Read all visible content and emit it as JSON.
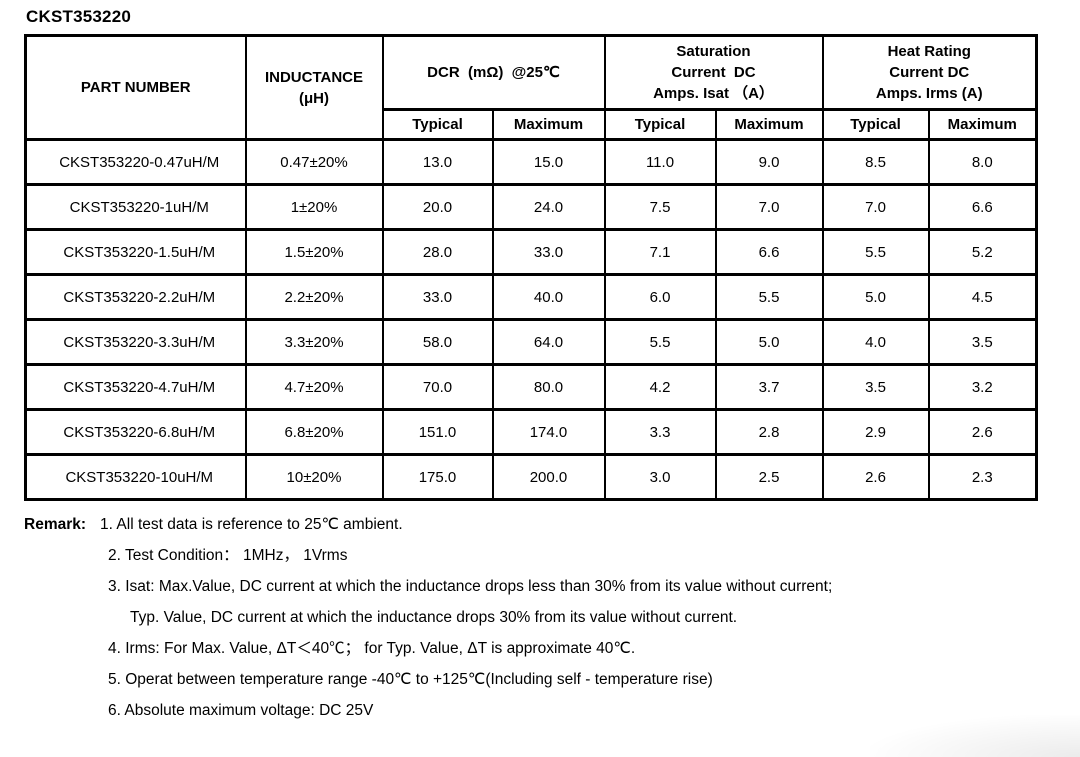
{
  "page": {
    "title": "CKST353220"
  },
  "colors": {
    "border": "#000000",
    "text": "#000000",
    "background": "#ffffff"
  },
  "table": {
    "headers": {
      "part_number": "PART NUMBER",
      "inductance": "INDUCTANCE\n(μH)",
      "dcr": "DCR  (mΩ)  @25℃",
      "saturation": "Saturation\nCurrent  DC\nAmps. Isat （A）",
      "heat": "Heat Rating\nCurrent DC\nAmps. Irms (A)",
      "typical": "Typical",
      "maximum": "Maximum"
    },
    "rows": [
      [
        "CKST353220-0.47uH/M",
        "0.47±20%",
        "13.0",
        "15.0",
        "11.0",
        "9.0",
        "8.5",
        "8.0"
      ],
      [
        "CKST353220-1uH/M",
        "1±20%",
        "20.0",
        "24.0",
        "7.5",
        "7.0",
        "7.0",
        "6.6"
      ],
      [
        "CKST353220-1.5uH/M",
        "1.5±20%",
        "28.0",
        "33.0",
        "7.1",
        "6.6",
        "5.5",
        "5.2"
      ],
      [
        "CKST353220-2.2uH/M",
        "2.2±20%",
        "33.0",
        "40.0",
        "6.0",
        "5.5",
        "5.0",
        "4.5"
      ],
      [
        "CKST353220-3.3uH/M",
        "3.3±20%",
        "58.0",
        "64.0",
        "5.5",
        "5.0",
        "4.0",
        "3.5"
      ],
      [
        "CKST353220-4.7uH/M",
        "4.7±20%",
        "70.0",
        "80.0",
        "4.2",
        "3.7",
        "3.5",
        "3.2"
      ],
      [
        "CKST353220-6.8uH/M",
        "6.8±20%",
        "151.0",
        "174.0",
        "3.3",
        "2.8",
        "2.9",
        "2.6"
      ],
      [
        "CKST353220-10uH/M",
        "10±20%",
        "175.0",
        "200.0",
        "3.0",
        "2.5",
        "2.6",
        "2.3"
      ]
    ]
  },
  "remarks": {
    "label": "Remark:",
    "lines": [
      {
        "text": "1. All test data is reference to 25℃ ambient.",
        "indent": 0
      },
      {
        "text": "2. Test Condition： 1MHz， 1Vrms",
        "indent": 1
      },
      {
        "text": "3. Isat: Max.Value, DC current at which the inductance drops less than 30% from its value without current;",
        "indent": 1
      },
      {
        "text": "Typ. Value, DC current at which the inductance drops 30% from its value without current.",
        "indent": 2
      },
      {
        "text": "4. Irms: For Max. Value, ΔT＜40℃； for Typ. Value, ΔT is approximate 40℃.",
        "indent": 1
      },
      {
        "text": "5. Operat between temperature range -40℃ to +125℃(Including self - temperature rise)",
        "indent": 1
      },
      {
        "text": "6. Absolute maximum voltage: DC 25V",
        "indent": 1
      }
    ]
  }
}
